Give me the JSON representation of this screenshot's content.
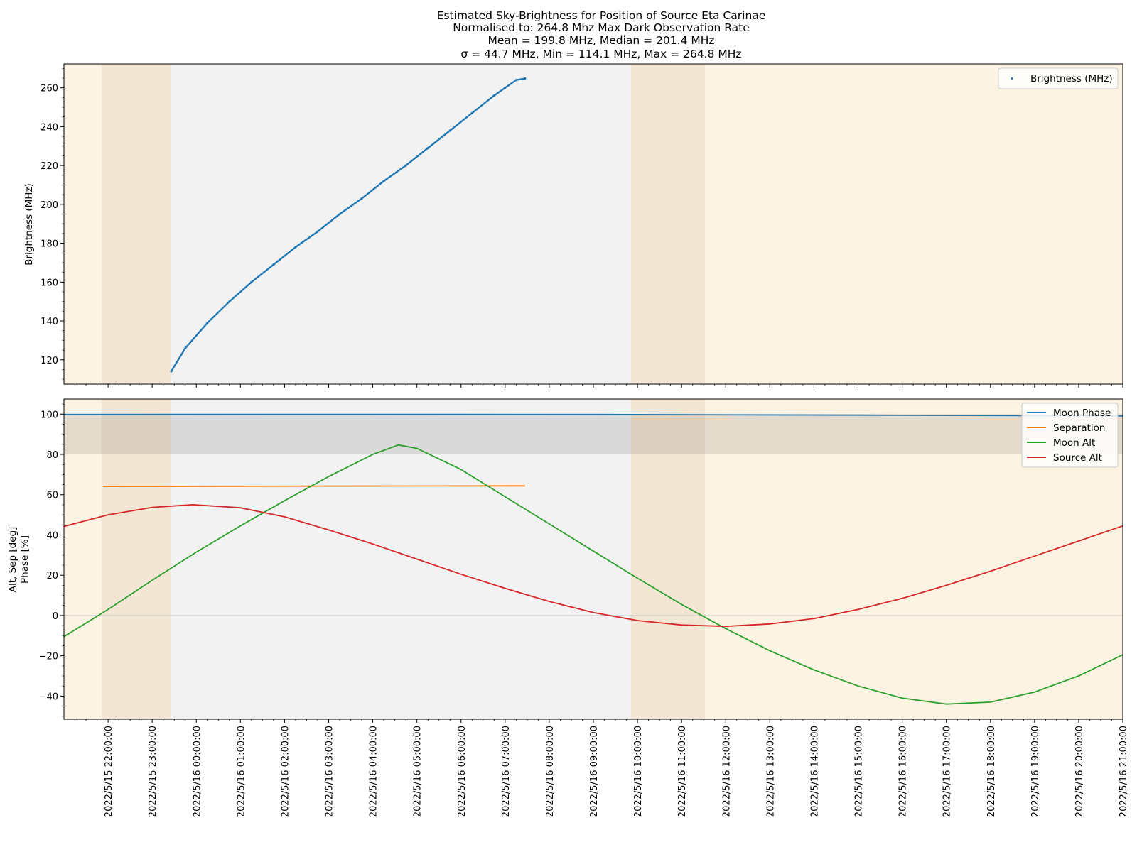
{
  "title": {
    "lines": [
      "Estimated Sky-Brightness for Position of Source Eta Carinae",
      "Normalised to: 264.8 Mhz Max Dark Observation Rate",
      "Mean = 199.8 MHz, Median = 201.4 MHz",
      "σ = 44.7 MHz, Min = 114.1 MHz, Max = 264.8 MHz"
    ]
  },
  "colors": {
    "twilight": "#fdf3e2",
    "twilight_mid": "#f3e6d4",
    "dark": "#f2f2f2",
    "phase_band": "#000000",
    "brightness": "#1f77b4",
    "moon_phase": "#1f77b4",
    "separation": "#ff7f0e",
    "moon_alt": "#2ca02c",
    "source_alt": "#d62728",
    "zero_line": "#cccccc"
  },
  "chart_data": [
    {
      "type": "scatter",
      "ylabel": "Brightness (MHz)",
      "xlim": [
        "2022-05-15T21:00:00",
        "2022-05-16T21:00:00"
      ],
      "ylim": [
        107.5,
        272.3
      ],
      "yticks": [
        120,
        140,
        160,
        180,
        200,
        220,
        240,
        260
      ],
      "legend": {
        "placement": "top-right"
      },
      "background_spans": [
        {
          "kind": "twilight",
          "start": "2022-05-15T21:00:00",
          "end": "2022-05-15T21:51:00"
        },
        {
          "kind": "twilight_mid",
          "start": "2022-05-15T21:51:00",
          "end": "2022-05-15T23:25:00"
        },
        {
          "kind": "dark",
          "start": "2022-05-15T23:25:00",
          "end": "2022-05-16T09:51:00"
        },
        {
          "kind": "twilight_mid",
          "start": "2022-05-16T09:51:00",
          "end": "2022-05-16T11:32:00"
        },
        {
          "kind": "twilight",
          "start": "2022-05-16T11:32:00",
          "end": "2022-05-16T21:00:00"
        }
      ],
      "series": [
        {
          "name": "Brightness (MHz)",
          "x": [
            "2022-05-15T23:26:00",
            "2022-05-15T23:45:00",
            "2022-05-16T00:15:00",
            "2022-05-16T00:45:00",
            "2022-05-16T01:15:00",
            "2022-05-16T01:45:00",
            "2022-05-16T02:15:00",
            "2022-05-16T02:45:00",
            "2022-05-16T03:15:00",
            "2022-05-16T03:45:00",
            "2022-05-16T04:15:00",
            "2022-05-16T04:45:00",
            "2022-05-16T05:15:00",
            "2022-05-16T05:45:00",
            "2022-05-16T06:15:00",
            "2022-05-16T06:45:00",
            "2022-05-16T07:00:00",
            "2022-05-16T07:15:00",
            "2022-05-16T07:27:00"
          ],
          "y": [
            114.1,
            126,
            139,
            150,
            160,
            169,
            178,
            186,
            195,
            203,
            212,
            220,
            229,
            238,
            247,
            256,
            260,
            264,
            264.8
          ]
        }
      ]
    },
    {
      "type": "line",
      "ylabel": [
        "Alt, Sep [deg]",
        "Phase [%]"
      ],
      "xlim": [
        "2022-05-15T21:00:00",
        "2022-05-16T21:00:00"
      ],
      "ylim": [
        -51.5,
        107.5
      ],
      "yticks": [
        -40,
        -20,
        0,
        20,
        40,
        60,
        80,
        100
      ],
      "legend": {
        "placement": "top-right"
      },
      "phase_band": [
        80,
        100
      ],
      "zero_line": 0,
      "xticks": [
        "2022/5/15 22:00:00",
        "2022/5/15 23:00:00",
        "2022/5/16 00:00:00",
        "2022/5/16 01:00:00",
        "2022/5/16 02:00:00",
        "2022/5/16 03:00:00",
        "2022/5/16 04:00:00",
        "2022/5/16 05:00:00",
        "2022/5/16 06:00:00",
        "2022/5/16 07:00:00",
        "2022/5/16 08:00:00",
        "2022/5/16 09:00:00",
        "2022/5/16 10:00:00",
        "2022/5/16 11:00:00",
        "2022/5/16 12:00:00",
        "2022/5/16 13:00:00",
        "2022/5/16 14:00:00",
        "2022/5/16 15:00:00",
        "2022/5/16 16:00:00",
        "2022/5/16 17:00:00",
        "2022/5/16 18:00:00",
        "2022/5/16 19:00:00",
        "2022/5/16 20:00:00",
        "2022/5/16 21:00:00"
      ],
      "background_spans": [
        {
          "kind": "twilight",
          "start": "2022-05-15T21:00:00",
          "end": "2022-05-15T21:51:00"
        },
        {
          "kind": "twilight_mid",
          "start": "2022-05-15T21:51:00",
          "end": "2022-05-15T23:25:00"
        },
        {
          "kind": "dark",
          "start": "2022-05-15T23:25:00",
          "end": "2022-05-16T09:51:00"
        },
        {
          "kind": "twilight_mid",
          "start": "2022-05-16T09:51:00",
          "end": "2022-05-16T11:32:00"
        },
        {
          "kind": "twilight",
          "start": "2022-05-16T11:32:00",
          "end": "2022-05-16T21:00:00"
        }
      ],
      "series": [
        {
          "name": "Moon Phase",
          "x": [
            "2022-05-15T21:00:00",
            "2022-05-16T03:00:00",
            "2022-05-16T09:00:00",
            "2022-05-16T15:00:00",
            "2022-05-16T21:00:00"
          ],
          "y": [
            99.8,
            99.9,
            99.8,
            99.5,
            99.1
          ]
        },
        {
          "name": "Separation",
          "x": [
            "2022-05-15T21:53:00",
            "2022-05-16T01:00:00",
            "2022-05-16T04:30:00",
            "2022-05-16T07:27:00"
          ],
          "y": [
            64.1,
            64.2,
            64.3,
            64.4
          ]
        },
        {
          "name": "Moon Alt",
          "x": [
            "2022-05-15T21:00:00",
            "2022-05-15T22:00:00",
            "2022-05-15T23:00:00",
            "2022-05-16T00:00:00",
            "2022-05-16T01:00:00",
            "2022-05-16T02:00:00",
            "2022-05-16T03:00:00",
            "2022-05-16T04:00:00",
            "2022-05-16T04:35:00",
            "2022-05-16T05:00:00",
            "2022-05-16T06:00:00",
            "2022-05-16T07:00:00",
            "2022-05-16T08:00:00",
            "2022-05-16T09:00:00",
            "2022-05-16T10:00:00",
            "2022-05-16T11:00:00",
            "2022-05-16T12:00:00",
            "2022-05-16T13:00:00",
            "2022-05-16T14:00:00",
            "2022-05-16T15:00:00",
            "2022-05-16T16:00:00",
            "2022-05-16T17:00:00",
            "2022-05-16T18:00:00",
            "2022-05-16T19:00:00",
            "2022-05-16T20:00:00",
            "2022-05-16T21:00:00"
          ],
          "y": [
            -10.5,
            3,
            17.5,
            31.5,
            44.5,
            57,
            69,
            80,
            84.7,
            83,
            72.5,
            59,
            45.5,
            32,
            18.5,
            5.5,
            -6.5,
            -17.5,
            -27,
            -35,
            -41,
            -44,
            -43,
            -38,
            -30,
            -19.5
          ]
        },
        {
          "name": "Source Alt",
          "x": [
            "2022-05-15T21:00:00",
            "2022-05-15T22:00:00",
            "2022-05-15T23:00:00",
            "2022-05-15T23:55:00",
            "2022-05-16T01:00:00",
            "2022-05-16T02:00:00",
            "2022-05-16T03:00:00",
            "2022-05-16T04:00:00",
            "2022-05-16T05:00:00",
            "2022-05-16T06:00:00",
            "2022-05-16T07:00:00",
            "2022-05-16T08:00:00",
            "2022-05-16T09:00:00",
            "2022-05-16T10:00:00",
            "2022-05-16T11:00:00",
            "2022-05-16T12:00:00",
            "2022-05-16T13:00:00",
            "2022-05-16T14:00:00",
            "2022-05-16T15:00:00",
            "2022-05-16T16:00:00",
            "2022-05-16T17:00:00",
            "2022-05-16T18:00:00",
            "2022-05-16T19:00:00",
            "2022-05-16T20:00:00",
            "2022-05-16T21:00:00"
          ],
          "y": [
            44.2,
            50,
            53.7,
            55,
            53.5,
            49,
            42.5,
            35.5,
            28,
            20.5,
            13.5,
            7,
            1.5,
            -2.5,
            -4.7,
            -5.4,
            -4.2,
            -1.5,
            3,
            8.5,
            15,
            22,
            29.5,
            37,
            44.5
          ]
        }
      ]
    }
  ]
}
